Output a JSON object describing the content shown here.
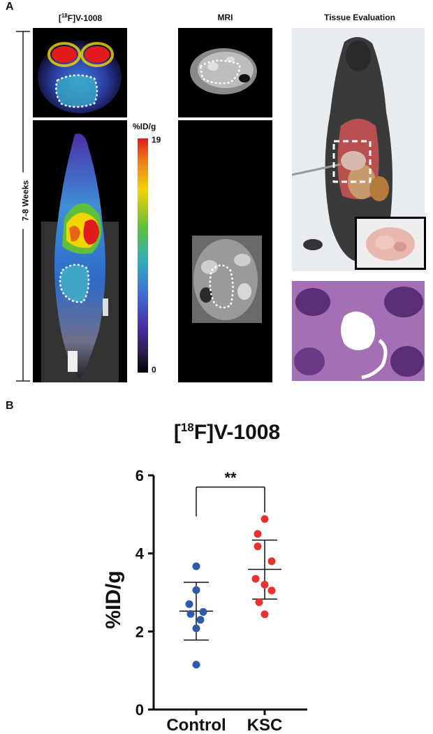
{
  "panel_a": {
    "label": "A",
    "columns": {
      "pet_title_open": "[",
      "pet_title_sup": "18",
      "pet_title_rest": "F]V-1008",
      "mri_title": "MRI",
      "tissue_title": "Tissue Evaluation"
    },
    "timeline_label": "7-8 Weeks",
    "colorbar": {
      "unit": "%ID/g",
      "max_label": "19",
      "min_label": "0"
    }
  },
  "panel_b": {
    "label": "B"
  },
  "chart_data": {
    "type": "scatter",
    "title_open": "[",
    "title_sup": "18",
    "title_rest": "F]V-1008",
    "ylabel": "%ID/g",
    "ylim": [
      0,
      6
    ],
    "yticks": [
      "0",
      "2",
      "4",
      "6"
    ],
    "categories": [
      "Control",
      "KSC"
    ],
    "series": [
      {
        "category": "Control",
        "color": "#2f5aa8",
        "values": [
          3.67,
          3.06,
          2.7,
          2.5,
          2.45,
          2.3,
          2.08,
          1.15
        ],
        "mean": 2.52,
        "sd_upper": 3.26,
        "sd_lower": 1.78
      },
      {
        "category": "KSC",
        "color": "#e8322d",
        "values": [
          4.88,
          4.5,
          4.18,
          3.8,
          3.35,
          3.2,
          3.05,
          2.75,
          2.44
        ],
        "mean": 3.59,
        "sd_upper": 4.34,
        "sd_lower": 2.83
      }
    ],
    "significance": "**"
  }
}
